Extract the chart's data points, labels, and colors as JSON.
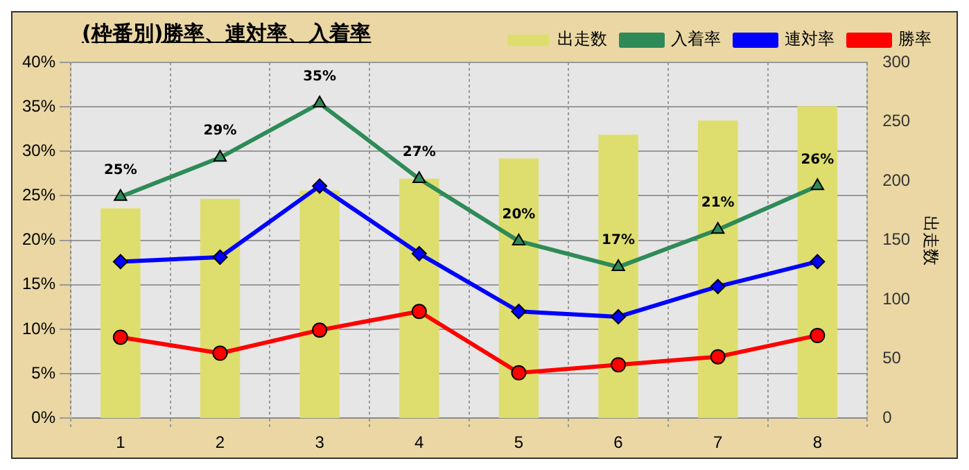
{
  "chart_data": {
    "type": "bar",
    "title": "(枠番別)勝率、連対率、入着率",
    "y2label": "出走数",
    "categories": [
      "1",
      "2",
      "3",
      "4",
      "5",
      "6",
      "7",
      "8"
    ],
    "series": [
      {
        "name": "出走数",
        "axis": "y2",
        "color": "#dede6e",
        "values": [
          177,
          185,
          192,
          202,
          219,
          239,
          251,
          263
        ]
      },
      {
        "name": "入着率",
        "type": "line",
        "marker": "triangle",
        "color": "#2e8b57",
        "values": [
          24.9,
          29.3,
          35.4,
          26.9,
          19.9,
          17.0,
          21.2,
          26.1
        ],
        "value_labels": [
          "25%",
          "29%",
          "35%",
          "27%",
          "20%",
          "17%",
          "21%",
          "26%"
        ]
      },
      {
        "name": "連対率",
        "type": "line",
        "marker": "diamond",
        "color": "#0000ff",
        "values": [
          17.6,
          18.1,
          26.1,
          18.5,
          12.0,
          11.4,
          14.8,
          17.6
        ]
      },
      {
        "name": "勝率",
        "type": "line",
        "marker": "circle",
        "color": "#ff0000",
        "values": [
          9.1,
          7.3,
          9.9,
          12.0,
          5.1,
          6.0,
          6.9,
          9.3
        ]
      }
    ],
    "ylim": [
      0,
      40
    ],
    "yticks": [
      {
        "value": 0,
        "label": "0%"
      },
      {
        "value": 5,
        "label": "5%"
      },
      {
        "value": 10,
        "label": "10%"
      },
      {
        "value": 15,
        "label": "15%"
      },
      {
        "value": 20,
        "label": "20%"
      },
      {
        "value": 25,
        "label": "25%"
      },
      {
        "value": 30,
        "label": "30%"
      },
      {
        "value": 35,
        "label": "35%"
      },
      {
        "value": 40,
        "label": "40%"
      }
    ],
    "y2lim": [
      0,
      300
    ],
    "y2ticks": [
      0,
      50,
      100,
      150,
      200,
      250,
      300
    ],
    "grid": true,
    "legend": "top right"
  }
}
